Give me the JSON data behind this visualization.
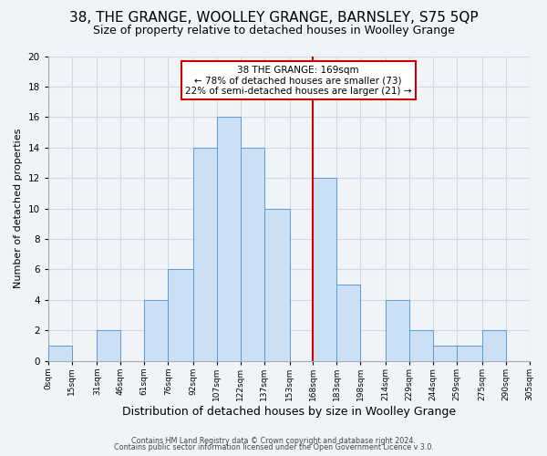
{
  "title": "38, THE GRANGE, WOOLLEY GRANGE, BARNSLEY, S75 5QP",
  "subtitle": "Size of property relative to detached houses in Woolley Grange",
  "xlabel": "Distribution of detached houses by size in Woolley Grange",
  "ylabel": "Number of detached properties",
  "footer_line1": "Contains HM Land Registry data © Crown copyright and database right 2024.",
  "footer_line2": "Contains public sector information licensed under the Open Government Licence v 3.0.",
  "annotation_line1": "38 THE GRANGE: 169sqm",
  "annotation_line2": "← 78% of detached houses are smaller (73)",
  "annotation_line3": "22% of semi-detached houses are larger (21) →",
  "bar_left_edges": [
    0,
    15,
    31,
    46,
    61,
    76,
    92,
    107,
    122,
    137,
    153,
    168,
    183,
    198,
    214,
    229,
    244,
    259,
    275,
    290
  ],
  "bar_widths": [
    15,
    16,
    15,
    15,
    15,
    16,
    15,
    15,
    15,
    16,
    15,
    15,
    15,
    16,
    15,
    15,
    15,
    16,
    15,
    15
  ],
  "bar_heights": [
    1,
    0,
    2,
    0,
    4,
    6,
    14,
    16,
    14,
    10,
    0,
    12,
    5,
    0,
    4,
    2,
    1,
    1,
    2,
    0
  ],
  "bar_color": "#cce0f5",
  "bar_edge_color": "#5b9bd5",
  "vline_x": 168,
  "vline_color": "#cc0000",
  "tick_labels": [
    "0sqm",
    "15sqm",
    "31sqm",
    "46sqm",
    "61sqm",
    "76sqm",
    "92sqm",
    "107sqm",
    "122sqm",
    "137sqm",
    "153sqm",
    "168sqm",
    "183sqm",
    "198sqm",
    "214sqm",
    "229sqm",
    "244sqm",
    "259sqm",
    "275sqm",
    "290sqm",
    "305sqm"
  ],
  "xlim": [
    0,
    305
  ],
  "ylim": [
    0,
    20
  ],
  "yticks": [
    0,
    2,
    4,
    6,
    8,
    10,
    12,
    14,
    16,
    18,
    20
  ],
  "grid_color": "#d0d8e0",
  "background_color": "#f0f4f8",
  "plot_bg_color": "#f0f4f8",
  "title_fontsize": 11,
  "subtitle_fontsize": 9,
  "xlabel_fontsize": 9,
  "ylabel_fontsize": 8,
  "annotation_fontsize": 7.5,
  "tick_fontsize": 6.5,
  "ytick_fontsize": 7.5,
  "footer_fontsize": 5.8
}
